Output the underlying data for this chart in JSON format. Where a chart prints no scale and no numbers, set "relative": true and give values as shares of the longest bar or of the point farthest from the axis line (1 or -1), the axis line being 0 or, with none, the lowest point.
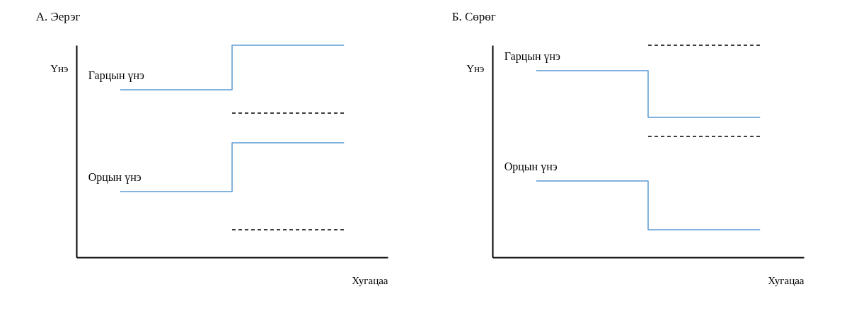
{
  "chart_data": [
    {
      "type": "step",
      "title": "А. Эерэг",
      "xlabel": "Хугацаа",
      "ylabel": "Үнэ",
      "relative": true,
      "tick_labels": false,
      "grid": false,
      "categories": [
        null,
        null,
        null
      ],
      "series": [
        {
          "name": "Гарцын үнэ",
          "color": "#5b9bd5",
          "line_style": "solid",
          "values": [
            0.79,
            1.0,
            1.0
          ]
        },
        {
          "color": "#000000",
          "line_style": "dashed",
          "values": [
            null,
            0.68,
            0.68
          ]
        },
        {
          "name": "Орцын үнэ",
          "color": "#5b9bd5",
          "line_style": "solid",
          "values": [
            0.31,
            0.54,
            0.54
          ]
        },
        {
          "color": "#000000",
          "line_style": "dashed",
          "values": [
            null,
            0.13,
            0.13
          ]
        }
      ]
    },
    {
      "type": "step",
      "title": "Б. Сөрөг",
      "xlabel": "Хугацаа",
      "ylabel": "Үнэ",
      "relative": true,
      "tick_labels": false,
      "grid": false,
      "categories": [
        null,
        null,
        null
      ],
      "series": [
        {
          "name": "Гарцын үнэ",
          "color": "#5b9bd5",
          "line_style": "solid",
          "values": [
            0.88,
            0.66,
            0.66
          ]
        },
        {
          "color": "#000000",
          "line_style": "dashed",
          "values": [
            null,
            1.0,
            1.0
          ]
        },
        {
          "name": "Орцын үнэ",
          "color": "#5b9bd5",
          "line_style": "solid",
          "values": [
            0.36,
            0.13,
            0.13
          ]
        },
        {
          "color": "#000000",
          "line_style": "dashed",
          "values": [
            null,
            0.57,
            0.57
          ]
        }
      ]
    }
  ]
}
